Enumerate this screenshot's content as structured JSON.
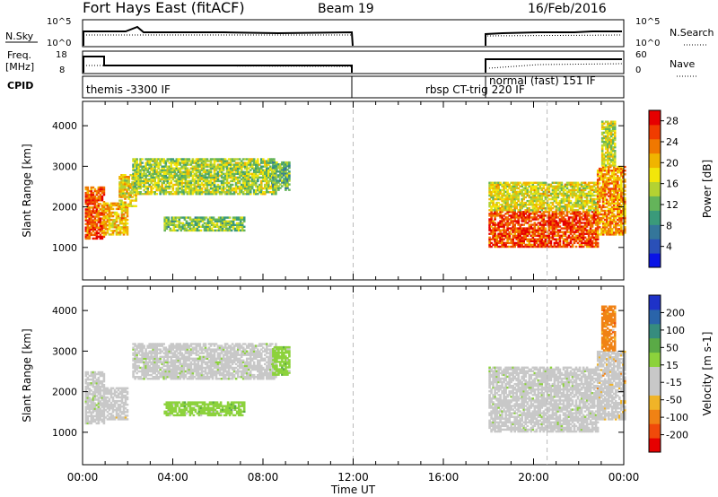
{
  "header": {
    "station": "Fort Hays East (fitACF)",
    "beam": "Beam 19",
    "date": "16/Feb/2016"
  },
  "top_panels": {
    "nsky_label": "N.Sky",
    "nsky_ticks": [
      "10^5",
      "10^0"
    ],
    "nsearch_label": "N.Search",
    "nsearch_ticks": [
      "10^5",
      "10^0"
    ],
    "freq_label": "Freq.",
    "freq_unit": "[MHz]",
    "freq_ticks": [
      "18",
      "8"
    ],
    "nave_label": "Nave",
    "nave_ticks": [
      "60",
      "0"
    ],
    "cpid_label": "CPID",
    "cpid_segments": [
      "themis -3300 IF",
      "rbsp CT-trig 220 IF",
      "normal (fast) 151 IF"
    ]
  },
  "colors": {
    "power_scale": [
      "#0a14e6",
      "#2a50b8",
      "#34769a",
      "#3a9a7a",
      "#64b45a",
      "#b4d232",
      "#f2e60a",
      "#f0b400",
      "#f07800",
      "#f03c00",
      "#e60000"
    ],
    "velocity_scale": [
      "#1e32c8",
      "#2a64aa",
      "#368c7e",
      "#5aaa46",
      "#8cd23c",
      "#c8c8c8",
      "#c8c8c8",
      "#f0b428",
      "#f08214",
      "#f04a0a",
      "#e60000"
    ]
  },
  "chart_data": [
    {
      "type": "heatmap",
      "name": "Power",
      "ylabel": "Slant Range [km]",
      "yticks": [
        1000,
        2000,
        3000,
        4000
      ],
      "ylim": [
        200,
        4600
      ],
      "xlim_hours": [
        0,
        24
      ],
      "colorbar": {
        "label": "Power [dB]",
        "ticks": [
          4,
          8,
          12,
          16,
          20,
          24,
          28
        ],
        "range": [
          0,
          30
        ]
      },
      "regions": [
        {
          "t": [
            0.1,
            0.9
          ],
          "r": [
            1200,
            2500
          ],
          "p": 25
        },
        {
          "t": [
            0.9,
            2.0
          ],
          "r": [
            1300,
            2100
          ],
          "p": 20
        },
        {
          "t": [
            1.6,
            2.4
          ],
          "r": [
            2000,
            2800
          ],
          "p": 18
        },
        {
          "t": [
            2.2,
            8.6
          ],
          "r": [
            2300,
            3200
          ],
          "p": 15
        },
        {
          "t": [
            8.4,
            9.2
          ],
          "r": [
            2400,
            3100
          ],
          "p": 12
        },
        {
          "t": [
            3.6,
            7.2
          ],
          "r": [
            1400,
            1750
          ],
          "p": 13
        },
        {
          "t": [
            18.0,
            22.8
          ],
          "r": [
            1000,
            1900
          ],
          "p": 26
        },
        {
          "t": [
            18.0,
            22.8
          ],
          "r": [
            1900,
            2600
          ],
          "p": 17
        },
        {
          "t": [
            22.8,
            24.0
          ],
          "r": [
            1300,
            3000
          ],
          "p": 22
        },
        {
          "t": [
            23.0,
            23.6
          ],
          "r": [
            3000,
            4100
          ],
          "p": 16
        }
      ]
    },
    {
      "type": "heatmap",
      "name": "Velocity",
      "ylabel": "Slant Range [km]",
      "yticks": [
        1000,
        2000,
        3000,
        4000
      ],
      "ylim": [
        200,
        4600
      ],
      "xlim_hours": [
        0,
        24
      ],
      "colorbar": {
        "label": "Velocity [m s-1]",
        "ticks": [
          200,
          100,
          50,
          15,
          -15,
          -50,
          -100,
          -200
        ],
        "range": [
          -250,
          250
        ]
      },
      "xlabel": "Time UT",
      "xticks": [
        "00:00",
        "04:00",
        "08:00",
        "12:00",
        "16:00",
        "20:00",
        "00:00"
      ],
      "regions": [
        {
          "t": [
            0.1,
            0.9
          ],
          "r": [
            1200,
            2500
          ],
          "v": 0
        },
        {
          "t": [
            0.9,
            2.0
          ],
          "r": [
            1300,
            2100
          ],
          "v": -30
        },
        {
          "t": [
            2.2,
            8.6
          ],
          "r": [
            2300,
            3200
          ],
          "v": 0
        },
        {
          "t": [
            8.4,
            9.2
          ],
          "r": [
            2400,
            3100
          ],
          "v": 40
        },
        {
          "t": [
            3.6,
            7.2
          ],
          "r": [
            1400,
            1750
          ],
          "v": 50
        },
        {
          "t": [
            18.0,
            22.8
          ],
          "r": [
            1000,
            2600
          ],
          "v": 0
        },
        {
          "t": [
            22.8,
            24.0
          ],
          "r": [
            1300,
            3000
          ],
          "v": -60
        },
        {
          "t": [
            23.0,
            23.6
          ],
          "r": [
            3000,
            4100
          ],
          "v": -120
        }
      ]
    }
  ]
}
